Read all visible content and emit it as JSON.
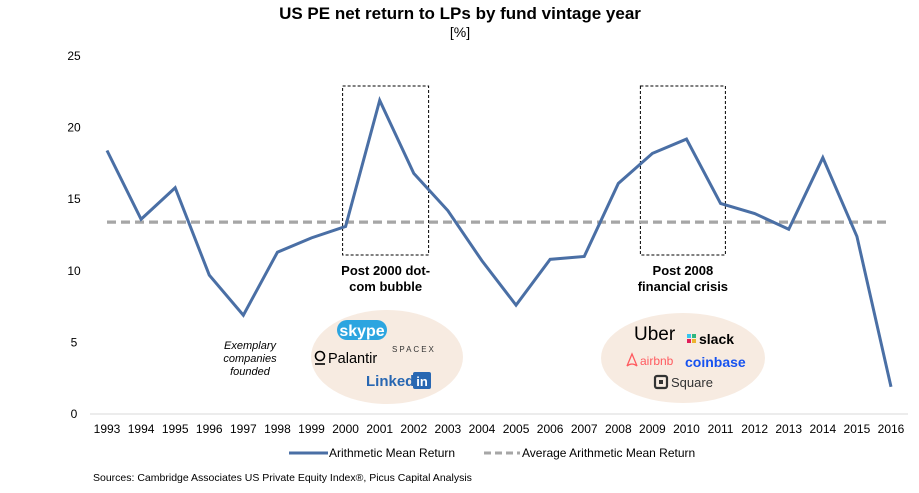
{
  "chart_data": {
    "type": "line",
    "title": "US PE net return to LPs by fund vintage year",
    "subtitle": "[%]",
    "xlabel": "",
    "ylabel": "",
    "ylim": [
      0,
      25
    ],
    "yticks": [
      0,
      5,
      10,
      15,
      20,
      25
    ],
    "grid": false,
    "categories": [
      "1993",
      "1994",
      "1995",
      "1996",
      "1997",
      "1998",
      "1999",
      "2000",
      "2001",
      "2002",
      "2003",
      "2004",
      "2005",
      "2006",
      "2007",
      "2008",
      "2009",
      "2010",
      "2011",
      "2012",
      "2013",
      "2014",
      "2015",
      "2016"
    ],
    "series": [
      {
        "name": "Arithmetic Mean Return",
        "style": "solid",
        "color": "#4A6FA5",
        "values": [
          18.4,
          13.6,
          15.8,
          9.7,
          6.9,
          11.3,
          12.3,
          13.1,
          21.9,
          16.8,
          14.2,
          10.7,
          7.6,
          10.8,
          11.0,
          16.1,
          18.2,
          19.2,
          14.7,
          14.0,
          12.9,
          17.9,
          12.4,
          1.9
        ]
      },
      {
        "name": "Average Arithmetic Mean Return",
        "style": "dashed",
        "color": "#A6A6A6",
        "values": [
          13.4,
          13.4,
          13.4,
          13.4,
          13.4,
          13.4,
          13.4,
          13.4,
          13.4,
          13.4,
          13.4,
          13.4,
          13.4,
          13.4,
          13.4,
          13.4,
          13.4,
          13.4,
          13.4,
          13.4,
          13.4,
          13.4,
          13.4,
          13.4
        ]
      }
    ],
    "legend": {
      "placement": "bottom",
      "entries": [
        "Arithmetic Mean Return",
        "Average Arithmetic Mean Return"
      ]
    },
    "annotations": [
      {
        "type": "box",
        "label": [
          "Post 2000 dot-",
          "com bubble"
        ],
        "from": "2000",
        "to": "2002"
      },
      {
        "type": "box",
        "label": [
          "Post 2008",
          "financial crisis"
        ],
        "from": "2009",
        "to": "2011"
      }
    ]
  },
  "examples": {
    "label": [
      "Exemplary",
      "companies",
      "founded"
    ],
    "group1": [
      "skype",
      "Palantir",
      "SPACEX",
      "Linked",
      "in"
    ],
    "group2": [
      "Uber",
      "slack",
      "airbnb",
      "coinbase",
      "Square"
    ]
  },
  "source": "Sources: Cambridge Associates US Private Equity Index®, Picus Capital Analysis",
  "colors": {
    "line": "#4A6FA5",
    "average": "#A6A6A6",
    "ellipse": "#F7EBE1",
    "skype": "#2CA5E0",
    "linkedin": "#2867B2",
    "airbnb": "#FF5A5F",
    "coinbase": "#1652F0"
  }
}
